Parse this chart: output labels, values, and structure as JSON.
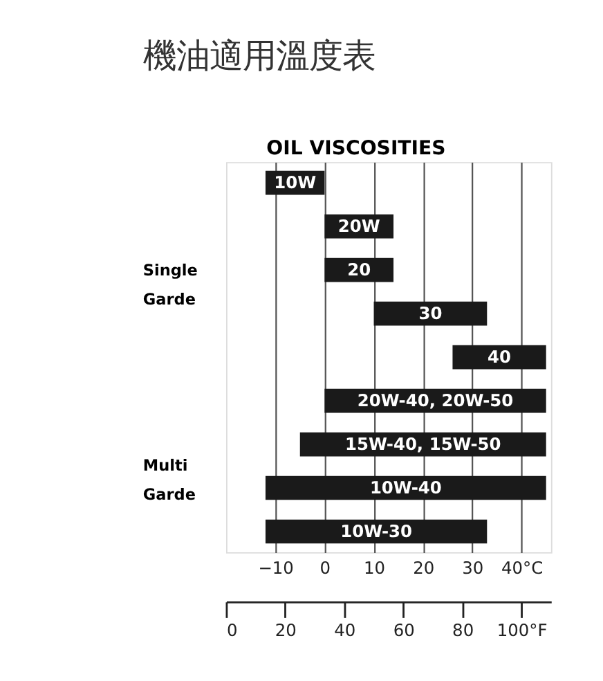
{
  "chart_data": {
    "type": "bar",
    "orientation": "horizontal",
    "title": "機油適用溫度表",
    "subtitle": "OIL VISCOSITIES",
    "categories": [
      "10W",
      "20W",
      "20",
      "30",
      "40",
      "20W-40, 20W-50",
      "15W-40, 15W-50",
      "10W-40",
      "10W-30"
    ],
    "base": [
      -12,
      0,
      0,
      10,
      26,
      0,
      -5,
      -12,
      -12
    ],
    "values": [
      12,
      14,
      14,
      23,
      19,
      45,
      50,
      57,
      45
    ],
    "color": "#1a1a1a",
    "xlim": [
      -20,
      46
    ],
    "xticks": [
      -10,
      0,
      10,
      20,
      30,
      {
        "value": 40,
        "label": "40°C"
      }
    ],
    "x2lim": [
      0,
      110
    ],
    "x2ticks": [
      0,
      20,
      40,
      60,
      80,
      {
        "value": 100,
        "label": "100°F"
      }
    ],
    "annotations": [
      "Single Garde",
      "Multi Garde"
    ],
    "grid": "x",
    "tick_labels": "x"
  }
}
